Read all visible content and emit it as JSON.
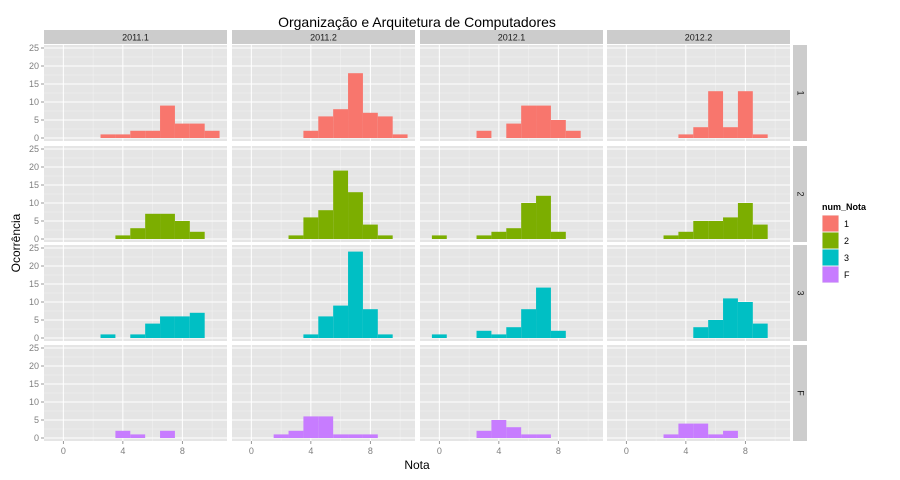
{
  "chart_data": {
    "type": "bar",
    "title": "Organização e Arquitetura de Computadores",
    "xlabel": "Nota",
    "ylabel": "Ocorrência",
    "xlim": [
      -1.3,
      11
    ],
    "ylim": [
      0,
      25
    ],
    "x_ticks": [
      0,
      4,
      8
    ],
    "y_ticks": [
      0,
      5,
      10,
      15,
      20,
      25
    ],
    "bin_width": 1,
    "grid": true,
    "legend_position": "right",
    "legend_title": "num_Nota",
    "colors": {
      "1": "#F8766D",
      "2": "#7CAE00",
      "3": "#00BFC4",
      "F": "#C77CFF"
    },
    "column_facets": [
      "2011.1",
      "2011.2",
      "2012.1",
      "2012.2"
    ],
    "row_facets": [
      "1",
      "2",
      "3",
      "F"
    ],
    "panels": [
      {
        "row": "1",
        "col": "2011.1",
        "bins": [
          [
            3,
            1
          ],
          [
            4,
            1
          ],
          [
            5,
            2
          ],
          [
            6,
            2
          ],
          [
            7,
            9
          ],
          [
            8,
            4
          ],
          [
            9,
            4
          ],
          [
            10,
            2
          ]
        ]
      },
      {
        "row": "1",
        "col": "2011.2",
        "bins": [
          [
            4,
            2
          ],
          [
            5,
            6
          ],
          [
            6,
            8
          ],
          [
            7,
            18
          ],
          [
            8,
            7
          ],
          [
            9,
            6
          ],
          [
            10,
            1
          ]
        ]
      },
      {
        "row": "1",
        "col": "2012.1",
        "bins": [
          [
            3,
            2
          ],
          [
            5,
            4
          ],
          [
            6,
            9
          ],
          [
            7,
            9
          ],
          [
            8,
            5
          ],
          [
            9,
            2
          ]
        ]
      },
      {
        "row": "1",
        "col": "2012.2",
        "bins": [
          [
            4,
            1
          ],
          [
            5,
            3
          ],
          [
            6,
            13
          ],
          [
            7,
            3
          ],
          [
            8,
            13
          ],
          [
            9,
            1
          ]
        ]
      },
      {
        "row": "2",
        "col": "2011.1",
        "bins": [
          [
            4,
            1
          ],
          [
            5,
            3
          ],
          [
            6,
            7
          ],
          [
            7,
            7
          ],
          [
            8,
            5
          ],
          [
            9,
            2
          ]
        ]
      },
      {
        "row": "2",
        "col": "2011.2",
        "bins": [
          [
            3,
            1
          ],
          [
            4,
            6
          ],
          [
            5,
            8
          ],
          [
            6,
            19
          ],
          [
            7,
            13
          ],
          [
            8,
            4
          ],
          [
            9,
            1
          ]
        ]
      },
      {
        "row": "2",
        "col": "2012.1",
        "bins": [
          [
            0,
            1
          ],
          [
            3,
            1
          ],
          [
            4,
            2
          ],
          [
            5,
            3
          ],
          [
            6,
            10
          ],
          [
            7,
            12
          ],
          [
            8,
            2
          ]
        ]
      },
      {
        "row": "2",
        "col": "2012.2",
        "bins": [
          [
            3,
            1
          ],
          [
            4,
            2
          ],
          [
            5,
            5
          ],
          [
            6,
            5
          ],
          [
            7,
            6
          ],
          [
            8,
            10
          ],
          [
            9,
            4
          ]
        ]
      },
      {
        "row": "3",
        "col": "2011.1",
        "bins": [
          [
            3,
            1
          ],
          [
            5,
            1
          ],
          [
            6,
            4
          ],
          [
            7,
            6
          ],
          [
            8,
            6
          ],
          [
            9,
            7
          ]
        ]
      },
      {
        "row": "3",
        "col": "2011.2",
        "bins": [
          [
            4,
            1
          ],
          [
            5,
            6
          ],
          [
            6,
            9
          ],
          [
            7,
            24
          ],
          [
            8,
            8
          ],
          [
            9,
            1
          ]
        ]
      },
      {
        "row": "3",
        "col": "2012.1",
        "bins": [
          [
            0,
            1
          ],
          [
            3,
            2
          ],
          [
            4,
            1
          ],
          [
            5,
            3
          ],
          [
            6,
            8
          ],
          [
            7,
            14
          ],
          [
            8,
            2
          ]
        ]
      },
      {
        "row": "3",
        "col": "2012.2",
        "bins": [
          [
            5,
            3
          ],
          [
            6,
            5
          ],
          [
            7,
            11
          ],
          [
            8,
            10
          ],
          [
            9,
            4
          ]
        ]
      },
      {
        "row": "F",
        "col": "2011.1",
        "bins": [
          [
            4,
            2
          ],
          [
            5,
            1
          ],
          [
            7,
            2
          ]
        ]
      },
      {
        "row": "F",
        "col": "2011.2",
        "bins": [
          [
            2,
            1
          ],
          [
            3,
            2
          ],
          [
            4,
            6
          ],
          [
            5,
            6
          ],
          [
            6,
            1
          ],
          [
            7,
            1
          ],
          [
            8,
            1
          ]
        ]
      },
      {
        "row": "F",
        "col": "2012.1",
        "bins": [
          [
            3,
            2
          ],
          [
            4,
            5
          ],
          [
            5,
            3
          ],
          [
            6,
            1
          ],
          [
            7,
            1
          ]
        ]
      },
      {
        "row": "F",
        "col": "2012.2",
        "bins": [
          [
            3,
            1
          ],
          [
            4,
            4
          ],
          [
            5,
            4
          ],
          [
            6,
            1
          ],
          [
            7,
            2
          ]
        ]
      }
    ]
  }
}
